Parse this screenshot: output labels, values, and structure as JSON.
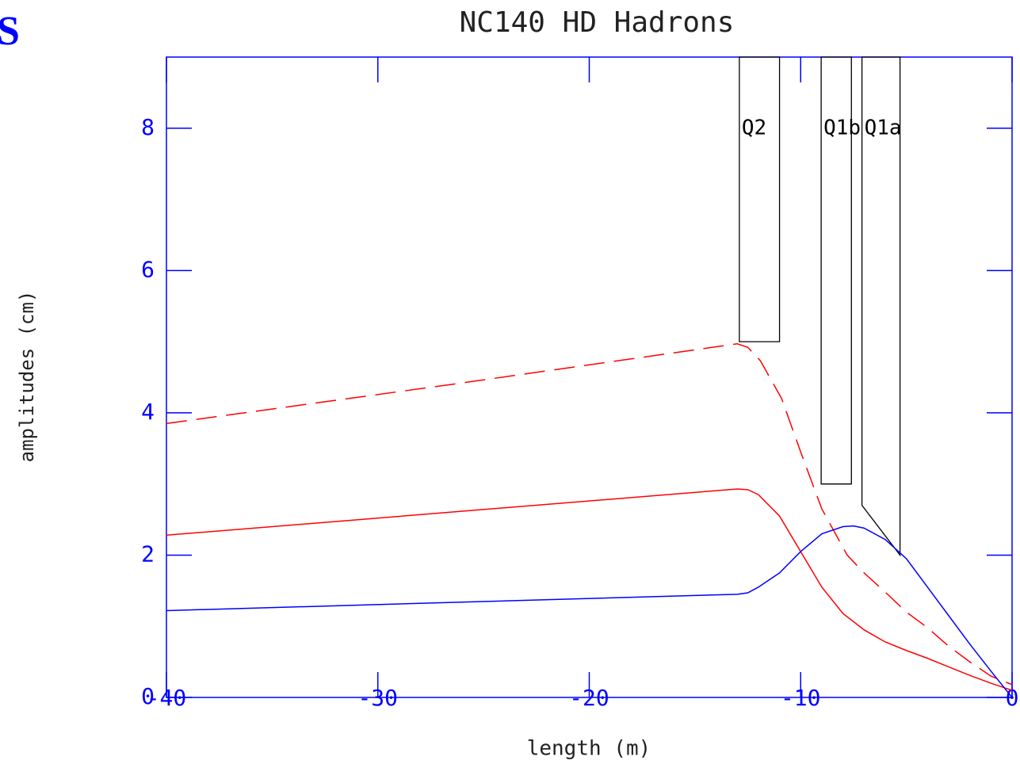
{
  "corner_text": "S",
  "chart_data": {
    "type": "line",
    "title": "NC140 HD Hadrons",
    "x_label": "length (m)",
    "y_label": "amplitudes (cm)",
    "xlim": [
      -40,
      0
    ],
    "ylim": [
      0,
      9
    ],
    "xticks": [
      -40,
      -30,
      -20,
      -10,
      0
    ],
    "yticks": [
      0,
      2,
      4,
      6,
      8
    ],
    "axis_color": "#0000ff",
    "series": [
      {
        "color": "#ff0000",
        "dashed": true,
        "x": [
          -40,
          -26.5,
          -13,
          -12.5,
          -11.9,
          -10.9,
          -10,
          -9,
          -7.8,
          -7,
          -6,
          -5,
          -4,
          -3,
          -2,
          -1,
          0
        ],
        "values": [
          3.85,
          4.4,
          4.97,
          4.92,
          4.73,
          4.2,
          3.45,
          2.65,
          2.0,
          1.75,
          1.48,
          1.2,
          0.98,
          0.72,
          0.5,
          0.3,
          0.18
        ]
      },
      {
        "color": "#ff0000",
        "dashed": false,
        "x": [
          -40,
          -13,
          -12.5,
          -12,
          -11,
          -10,
          -9,
          -8,
          -7,
          -6,
          -5,
          -4,
          -3,
          -2,
          -1,
          0
        ],
        "values": [
          2.28,
          2.93,
          2.92,
          2.85,
          2.55,
          2.05,
          1.55,
          1.18,
          0.95,
          0.78,
          0.66,
          0.55,
          0.43,
          0.31,
          0.2,
          0.1
        ]
      },
      {
        "color": "#0000ff",
        "dashed": false,
        "x": [
          -40,
          -13,
          -12.5,
          -12,
          -11,
          -10,
          -9,
          -8,
          -7.5,
          -7,
          -6,
          -5,
          -4,
          -3,
          -2,
          -1,
          0
        ],
        "values": [
          1.22,
          1.45,
          1.47,
          1.55,
          1.75,
          2.05,
          2.3,
          2.4,
          2.41,
          2.38,
          2.22,
          1.95,
          1.55,
          1.15,
          0.75,
          0.37,
          0.0
        ]
      }
    ],
    "magnets": [
      {
        "name": "Q2",
        "x": [
          -12.9,
          -12.9,
          -11,
          -11
        ],
        "y": [
          9,
          5,
          5,
          9
        ]
      },
      {
        "name": "Q1b",
        "x": [
          -9.03,
          -9.03,
          -7.6,
          -7.6
        ],
        "y": [
          9,
          3,
          3,
          9
        ]
      },
      {
        "name": "Q1a",
        "x": [
          -7.1,
          -7.1,
          -5.3,
          -5.3
        ],
        "y": [
          9,
          2.7,
          2.0,
          9
        ]
      }
    ],
    "magnet_label_y": 8
  }
}
